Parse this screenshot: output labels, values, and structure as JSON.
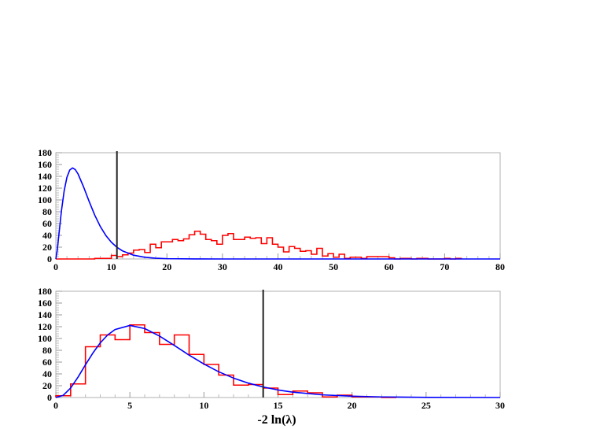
{
  "chart_data": [
    {
      "type": "histogram+line",
      "xlim": [
        0,
        80
      ],
      "ylim": [
        0,
        180
      ],
      "xticks": [
        0,
        10,
        20,
        30,
        40,
        50,
        60,
        70,
        80
      ],
      "yticks": [
        0,
        20,
        40,
        60,
        80,
        100,
        120,
        140,
        160,
        180
      ],
      "xlabel": "",
      "grid": false,
      "vertical_line_x": 11,
      "histogram": {
        "color": "#ff0000",
        "bin_start": 0,
        "bin_width": 1,
        "values": [
          0,
          0,
          0,
          0,
          0,
          0,
          0,
          1,
          1,
          1,
          6,
          4,
          7,
          10,
          15,
          16,
          11,
          25,
          19,
          29,
          29,
          33,
          31,
          34,
          41,
          47,
          42,
          33,
          31,
          25,
          40,
          43,
          33,
          33,
          37,
          35,
          36,
          26,
          36,
          25,
          20,
          12,
          21,
          18,
          13,
          14,
          8,
          18,
          5,
          9,
          3,
          8,
          1,
          3,
          3,
          1,
          4,
          4,
          4,
          4,
          2,
          0,
          1,
          1,
          0,
          1,
          1,
          0,
          0,
          0,
          1,
          0,
          1
        ]
      },
      "curve": {
        "color": "#0000ff",
        "x": [
          0,
          0.25,
          0.5,
          1,
          1.5,
          2,
          2.5,
          3,
          3.5,
          4,
          5,
          6,
          7,
          8,
          9,
          10,
          11,
          12,
          14,
          16,
          18,
          20,
          25,
          30,
          80
        ],
        "y": [
          0,
          14.7,
          36.6,
          80.7,
          115.4,
          138.4,
          150.6,
          154.2,
          151.4,
          144,
          122,
          97.4,
          74.4,
          55.1,
          39.9,
          28.3,
          19.8,
          13.7,
          6.4,
          2.9,
          1.3,
          0.5,
          0.05,
          0,
          0
        ]
      }
    },
    {
      "type": "histogram+line",
      "xlim": [
        0,
        30
      ],
      "ylim": [
        0,
        180
      ],
      "xticks": [
        0,
        5,
        10,
        15,
        20,
        25,
        30
      ],
      "yticks": [
        0,
        20,
        40,
        60,
        80,
        100,
        120,
        140,
        160,
        180
      ],
      "xlabel": "-2 ln(λ)",
      "grid": false,
      "vertical_line_x": 14,
      "histogram": {
        "color": "#ff0000",
        "bin_start": 0,
        "bin_width": 1,
        "values": [
          3,
          23,
          86,
          106,
          98,
          123,
          110,
          90,
          106,
          73,
          56,
          38,
          21,
          22,
          16,
          5,
          11,
          8,
          1,
          4,
          1,
          1,
          0
        ]
      },
      "curve": {
        "color": "#0000ff",
        "x": [
          0,
          0.5,
          1,
          1.5,
          2,
          2.5,
          3,
          3.5,
          4,
          5,
          6,
          7,
          8,
          9,
          10,
          11,
          12,
          13,
          14,
          15,
          16,
          18,
          20,
          22,
          25,
          30
        ],
        "y": [
          0,
          3.7,
          16.1,
          34.6,
          55.4,
          75.3,
          92.5,
          106,
          115.2,
          122.1,
          116.8,
          104.1,
          88.2,
          71.8,
          56.7,
          43.6,
          32.9,
          24.4,
          17.8,
          12.8,
          9.1,
          4.5,
          2.2,
          1.0,
          0.3,
          0
        ]
      }
    }
  ]
}
